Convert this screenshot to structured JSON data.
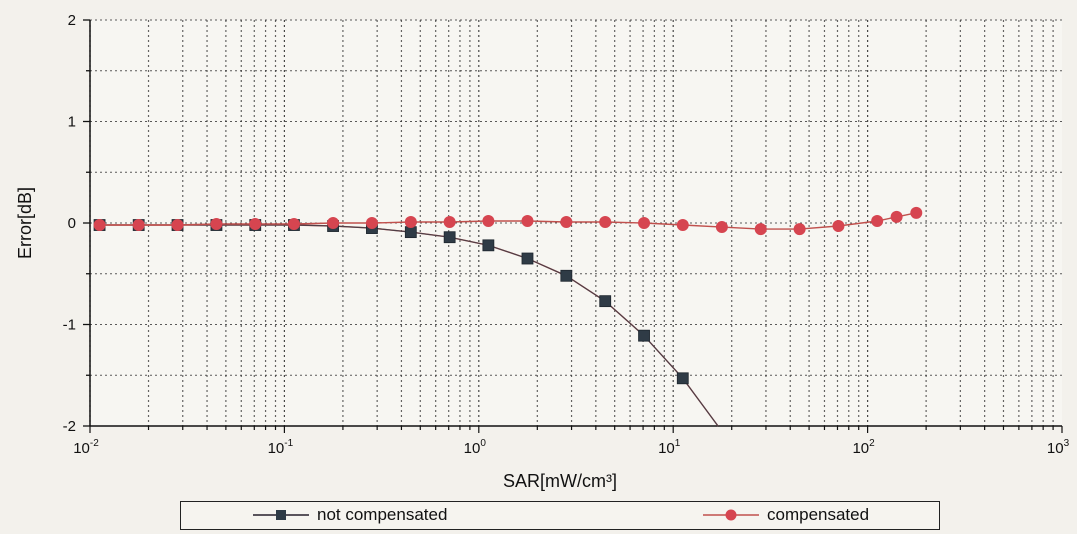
{
  "chart_data": {
    "type": "line",
    "xlabel": "SAR[mW/cm³]",
    "ylabel": "Error[dB]",
    "xscale": "log",
    "xlim": [
      0.01,
      1000
    ],
    "ylim": [
      -2,
      2
    ],
    "grid": true,
    "x_ticks": [
      {
        "value": 0.01,
        "base": "10",
        "exp": "-2"
      },
      {
        "value": 0.1,
        "base": "10",
        "exp": "-1"
      },
      {
        "value": 1,
        "base": "10",
        "exp": "0"
      },
      {
        "value": 10,
        "base": "10",
        "exp": "1"
      },
      {
        "value": 100,
        "base": "10",
        "exp": "2"
      },
      {
        "value": 1000,
        "base": "10",
        "exp": "3"
      }
    ],
    "y_ticks": [
      2,
      1,
      0,
      -1,
      -2
    ],
    "legend_position": "bottom",
    "series": [
      {
        "name": "not compensated",
        "color": "#2f3b46",
        "line_color": "#c0504d",
        "marker": "square",
        "x": [
          0.0112,
          0.0178,
          0.0282,
          0.0447,
          0.0708,
          0.112,
          0.178,
          0.282,
          0.447,
          0.708,
          1.12,
          1.78,
          2.82,
          4.47,
          7.08,
          11.2,
          17.0
        ],
        "y": [
          -0.02,
          -0.02,
          -0.02,
          -0.02,
          -0.02,
          -0.02,
          -0.03,
          -0.05,
          -0.09,
          -0.14,
          -0.22,
          -0.35,
          -0.52,
          -0.77,
          -1.11,
          -1.53,
          -2.0
        ],
        "markers_shown": 16
      },
      {
        "name": "compensated",
        "color": "#d64550",
        "line_color": "#c0504d",
        "marker": "circle",
        "x": [
          0.0112,
          0.0178,
          0.0282,
          0.0447,
          0.0708,
          0.112,
          0.178,
          0.282,
          0.447,
          0.708,
          1.12,
          1.78,
          2.82,
          4.47,
          7.08,
          11.2,
          17.8,
          28.2,
          44.7,
          70.8,
          112,
          141,
          178
        ],
        "y": [
          -0.02,
          -0.02,
          -0.02,
          -0.01,
          -0.01,
          -0.01,
          0.0,
          0.0,
          0.01,
          0.01,
          0.02,
          0.02,
          0.01,
          0.01,
          0.0,
          -0.02,
          -0.04,
          -0.06,
          -0.06,
          -0.03,
          0.02,
          0.06,
          0.1
        ]
      }
    ]
  }
}
